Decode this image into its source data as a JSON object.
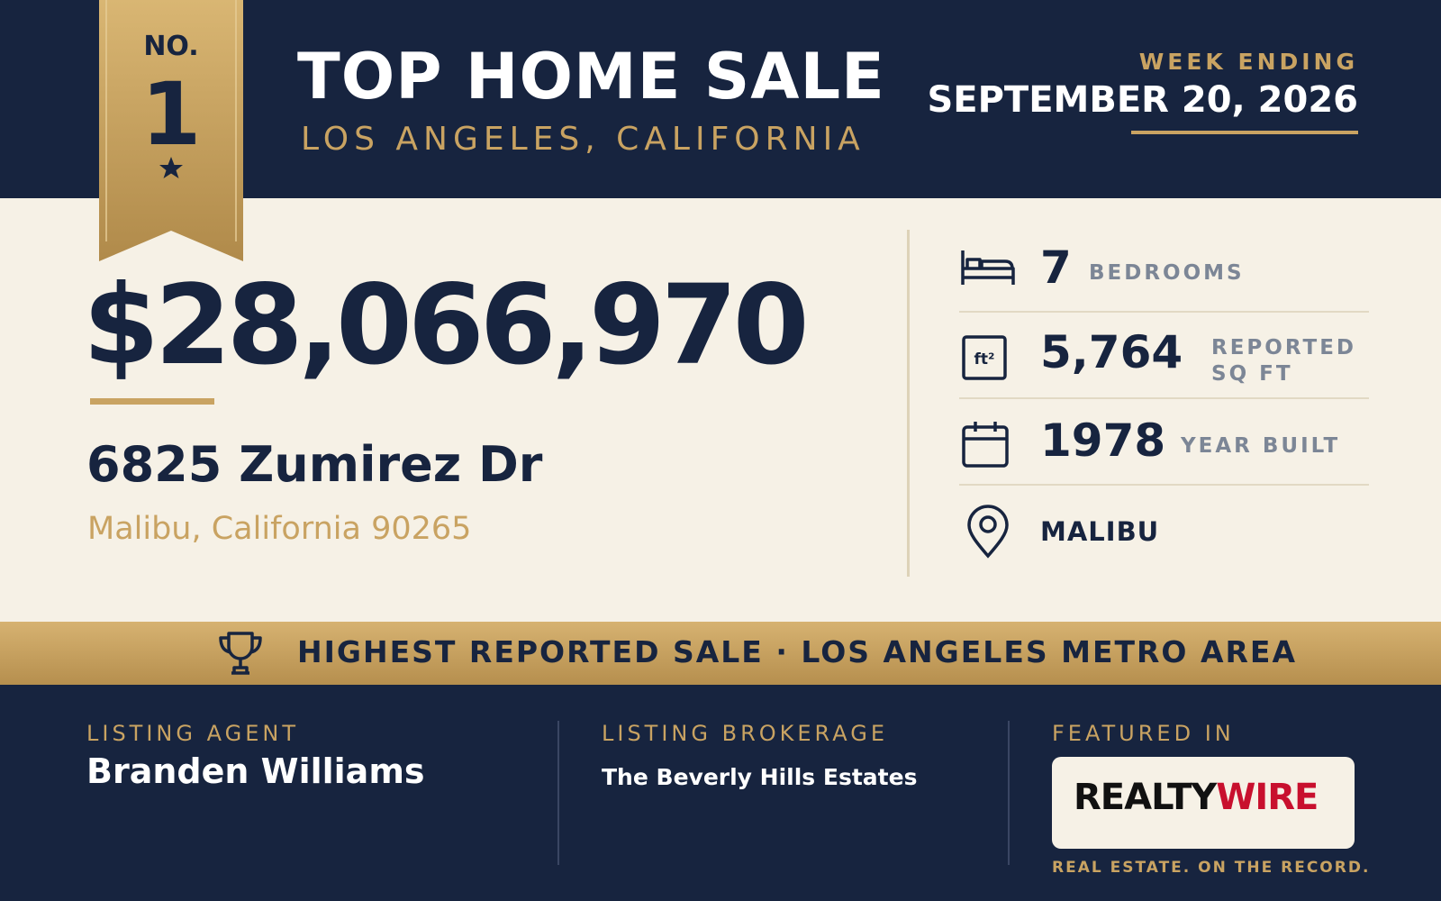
{
  "header": {
    "rank_label": "NO.",
    "rank": "1",
    "title": "TOP HOME SALE",
    "subtitle": "LOS ANGELES, CALIFORNIA",
    "week_label": "WEEK ENDING",
    "week_date": "SEPTEMBER 20, 2026"
  },
  "sale": {
    "price": "$28,066,970",
    "address": "6825 Zumirez Dr",
    "city": "Malibu, California 90265"
  },
  "stats": [
    {
      "value": "7",
      "label": "BEDROOMS"
    },
    {
      "value": "5,764",
      "label": "REPORTED SQ FT",
      "icon_text": "ft²"
    },
    {
      "value": "1978",
      "label": "YEAR BUILT"
    },
    {
      "value": "MALIBU"
    }
  ],
  "banner": "HIGHEST REPORTED SALE · LOS ANGELES METRO AREA",
  "footer": {
    "agent_label": "LISTING AGENT",
    "agent": "Branden Williams",
    "brokerage_label": "LISTING BROKERAGE",
    "brokerage": "The Beverly Hills Estates",
    "featured_label": "FEATURED IN",
    "logo_part1": "REALTY",
    "logo_part2": "WIRE",
    "tagline": "REAL ESTATE. ON THE RECORD."
  }
}
